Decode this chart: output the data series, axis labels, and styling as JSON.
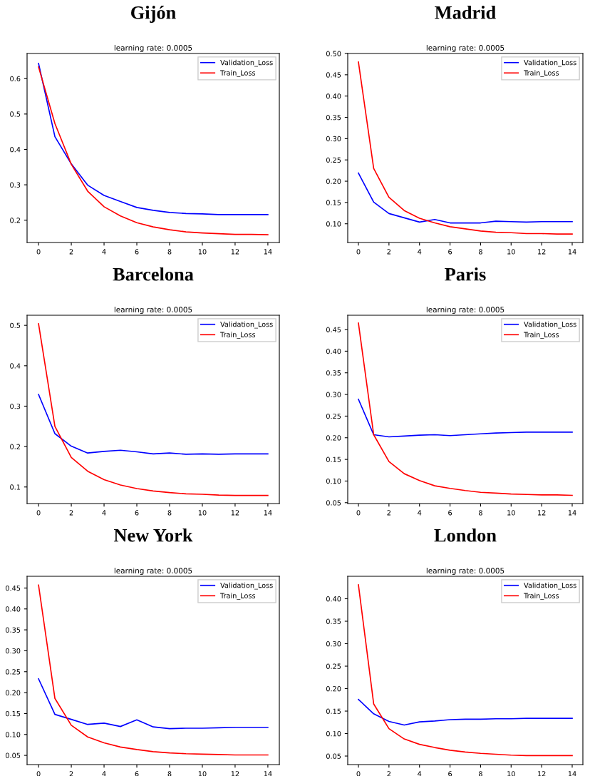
{
  "chart_data": [
    {
      "type": "line",
      "title": "Gijón",
      "subtitle": "learning rate: 0.0005",
      "x": [
        0,
        1,
        2,
        3,
        4,
        5,
        6,
        7,
        8,
        9,
        10,
        11,
        12,
        13,
        14
      ],
      "xlim": [
        -0.7,
        14.7
      ],
      "xticks": [
        0,
        2,
        4,
        6,
        8,
        10,
        12,
        14
      ],
      "ylim": [
        0.137,
        0.671
      ],
      "yticks": [
        0.2,
        0.3,
        0.4,
        0.5,
        0.6
      ],
      "legend": "top right",
      "series": [
        {
          "name": "Validation_Loss",
          "color": "#0000ff",
          "values": [
            0.643,
            0.436,
            0.359,
            0.299,
            0.27,
            0.253,
            0.236,
            0.228,
            0.222,
            0.219,
            0.218,
            0.216,
            0.216,
            0.216,
            0.216
          ]
        },
        {
          "name": "Train_Loss",
          "color": "#ff0000",
          "values": [
            0.633,
            0.473,
            0.358,
            0.282,
            0.238,
            0.212,
            0.193,
            0.181,
            0.173,
            0.167,
            0.164,
            0.162,
            0.16,
            0.16,
            0.159
          ]
        }
      ]
    },
    {
      "type": "line",
      "title": "Madrid",
      "subtitle": "learning rate: 0.0005",
      "x": [
        0,
        1,
        2,
        3,
        4,
        5,
        6,
        7,
        8,
        9,
        10,
        11,
        12,
        13,
        14
      ],
      "xlim": [
        -0.7,
        14.7
      ],
      "xticks": [
        0,
        2,
        4,
        6,
        8,
        10,
        12,
        14
      ],
      "ylim": [
        0.056,
        0.5
      ],
      "yticks": [
        {
          "value": 0.1,
          "label": "0.10"
        },
        {
          "value": 0.15,
          "label": "0.15"
        },
        {
          "value": 0.2,
          "label": "0.20"
        },
        {
          "value": 0.25,
          "label": "0.25"
        },
        {
          "value": 0.3,
          "label": "0.30"
        },
        {
          "value": 0.35,
          "label": "0.35"
        },
        {
          "value": 0.4,
          "label": "0.40"
        },
        {
          "value": 0.45,
          "label": "0.45"
        },
        {
          "value": 0.5,
          "label": "0.50"
        }
      ],
      "legend": "top right",
      "series": [
        {
          "name": "Validation_Loss",
          "color": "#0000ff",
          "values": [
            0.219,
            0.151,
            0.124,
            0.114,
            0.104,
            0.11,
            0.102,
            0.102,
            0.102,
            0.106,
            0.105,
            0.104,
            0.105,
            0.105,
            0.105
          ]
        },
        {
          "name": "Train_Loss",
          "color": "#ff0000",
          "values": [
            0.48,
            0.23,
            0.162,
            0.131,
            0.113,
            0.102,
            0.093,
            0.088,
            0.083,
            0.08,
            0.079,
            0.077,
            0.077,
            0.076,
            0.076
          ]
        }
      ]
    },
    {
      "type": "line",
      "title": "Barcelona",
      "subtitle": "learning rate: 0.0005",
      "x": [
        0,
        1,
        2,
        3,
        4,
        5,
        6,
        7,
        8,
        9,
        10,
        11,
        12,
        13,
        14
      ],
      "xlim": [
        -0.7,
        14.7
      ],
      "xticks": [
        0,
        2,
        4,
        6,
        8,
        10,
        12,
        14
      ],
      "ylim": [
        0.059,
        0.525
      ],
      "yticks": [
        0.1,
        0.2,
        0.3,
        0.4,
        0.5
      ],
      "legend": "top right",
      "series": [
        {
          "name": "Validation_Loss",
          "color": "#0000ff",
          "values": [
            0.329,
            0.232,
            0.201,
            0.184,
            0.188,
            0.191,
            0.187,
            0.182,
            0.184,
            0.181,
            0.182,
            0.181,
            0.182,
            0.182,
            0.182
          ]
        },
        {
          "name": "Train_Loss",
          "color": "#ff0000",
          "values": [
            0.504,
            0.25,
            0.173,
            0.139,
            0.118,
            0.105,
            0.096,
            0.09,
            0.086,
            0.083,
            0.082,
            0.08,
            0.079,
            0.079,
            0.079
          ]
        }
      ]
    },
    {
      "type": "line",
      "title": "Paris",
      "subtitle": "learning rate: 0.0005",
      "x": [
        0,
        1,
        2,
        3,
        4,
        5,
        6,
        7,
        8,
        9,
        10,
        11,
        12,
        13,
        14
      ],
      "xlim": [
        -0.7,
        14.7
      ],
      "xticks": [
        0,
        2,
        4,
        6,
        8,
        10,
        12,
        14
      ],
      "ylim": [
        0.048,
        0.483
      ],
      "yticks": [
        {
          "value": 0.05,
          "label": "0.05"
        },
        {
          "value": 0.1,
          "label": "0.10"
        },
        {
          "value": 0.15,
          "label": "0.15"
        },
        {
          "value": 0.2,
          "label": "0.20"
        },
        {
          "value": 0.25,
          "label": "0.25"
        },
        {
          "value": 0.3,
          "label": "0.30"
        },
        {
          "value": 0.35,
          "label": "0.35"
        },
        {
          "value": 0.4,
          "label": "0.40"
        },
        {
          "value": 0.45,
          "label": "0.45"
        }
      ],
      "legend": "top right",
      "series": [
        {
          "name": "Validation_Loss",
          "color": "#0000ff",
          "values": [
            0.289,
            0.207,
            0.202,
            0.204,
            0.206,
            0.207,
            0.205,
            0.207,
            0.209,
            0.211,
            0.212,
            0.213,
            0.213,
            0.213,
            0.213
          ]
        },
        {
          "name": "Train_Loss",
          "color": "#ff0000",
          "values": [
            0.465,
            0.207,
            0.145,
            0.117,
            0.101,
            0.089,
            0.083,
            0.078,
            0.074,
            0.072,
            0.07,
            0.069,
            0.068,
            0.068,
            0.067
          ]
        }
      ]
    },
    {
      "type": "line",
      "title": "New York",
      "subtitle": "learning rate: 0.0005",
      "x": [
        0,
        1,
        2,
        3,
        4,
        5,
        6,
        7,
        8,
        9,
        10,
        11,
        12,
        13,
        14
      ],
      "xlim": [
        -0.7,
        14.7
      ],
      "xticks": [
        0,
        2,
        4,
        6,
        8,
        10,
        12,
        14
      ],
      "ylim": [
        0.028,
        0.478
      ],
      "yticks": [
        {
          "value": 0.05,
          "label": "0.05"
        },
        {
          "value": 0.1,
          "label": "0.10"
        },
        {
          "value": 0.15,
          "label": "0.15"
        },
        {
          "value": 0.2,
          "label": "0.20"
        },
        {
          "value": 0.25,
          "label": "0.25"
        },
        {
          "value": 0.3,
          "label": "0.30"
        },
        {
          "value": 0.35,
          "label": "0.35"
        },
        {
          "value": 0.4,
          "label": "0.40"
        },
        {
          "value": 0.45,
          "label": "0.45"
        }
      ],
      "legend": "top right",
      "series": [
        {
          "name": "Validation_Loss",
          "color": "#0000ff",
          "values": [
            0.233,
            0.148,
            0.136,
            0.124,
            0.127,
            0.119,
            0.135,
            0.118,
            0.114,
            0.115,
            0.115,
            0.116,
            0.117,
            0.117,
            0.117
          ]
        },
        {
          "name": "Train_Loss",
          "color": "#ff0000",
          "values": [
            0.457,
            0.186,
            0.122,
            0.094,
            0.08,
            0.07,
            0.064,
            0.059,
            0.056,
            0.054,
            0.053,
            0.052,
            0.051,
            0.051,
            0.051
          ]
        }
      ]
    },
    {
      "type": "line",
      "title": "London",
      "subtitle": "learning rate: 0.0005",
      "x": [
        0,
        1,
        2,
        3,
        4,
        5,
        6,
        7,
        8,
        9,
        10,
        11,
        12,
        13,
        14
      ],
      "xlim": [
        -0.7,
        14.7
      ],
      "xticks": [
        0,
        2,
        4,
        6,
        8,
        10,
        12,
        14
      ],
      "ylim": [
        0.031,
        0.45
      ],
      "yticks": [
        {
          "value": 0.05,
          "label": "0.05"
        },
        {
          "value": 0.1,
          "label": "0.10"
        },
        {
          "value": 0.15,
          "label": "0.15"
        },
        {
          "value": 0.2,
          "label": "0.20"
        },
        {
          "value": 0.25,
          "label": "0.25"
        },
        {
          "value": 0.3,
          "label": "0.30"
        },
        {
          "value": 0.35,
          "label": "0.35"
        },
        {
          "value": 0.4,
          "label": "0.40"
        }
      ],
      "legend": "top right",
      "series": [
        {
          "name": "Validation_Loss",
          "color": "#0000ff",
          "values": [
            0.176,
            0.144,
            0.127,
            0.119,
            0.126,
            0.128,
            0.131,
            0.132,
            0.132,
            0.133,
            0.133,
            0.134,
            0.134,
            0.134,
            0.134
          ]
        },
        {
          "name": "Train_Loss",
          "color": "#ff0000",
          "values": [
            0.431,
            0.166,
            0.111,
            0.088,
            0.076,
            0.069,
            0.063,
            0.059,
            0.056,
            0.054,
            0.052,
            0.051,
            0.051,
            0.051,
            0.051
          ]
        }
      ]
    }
  ]
}
